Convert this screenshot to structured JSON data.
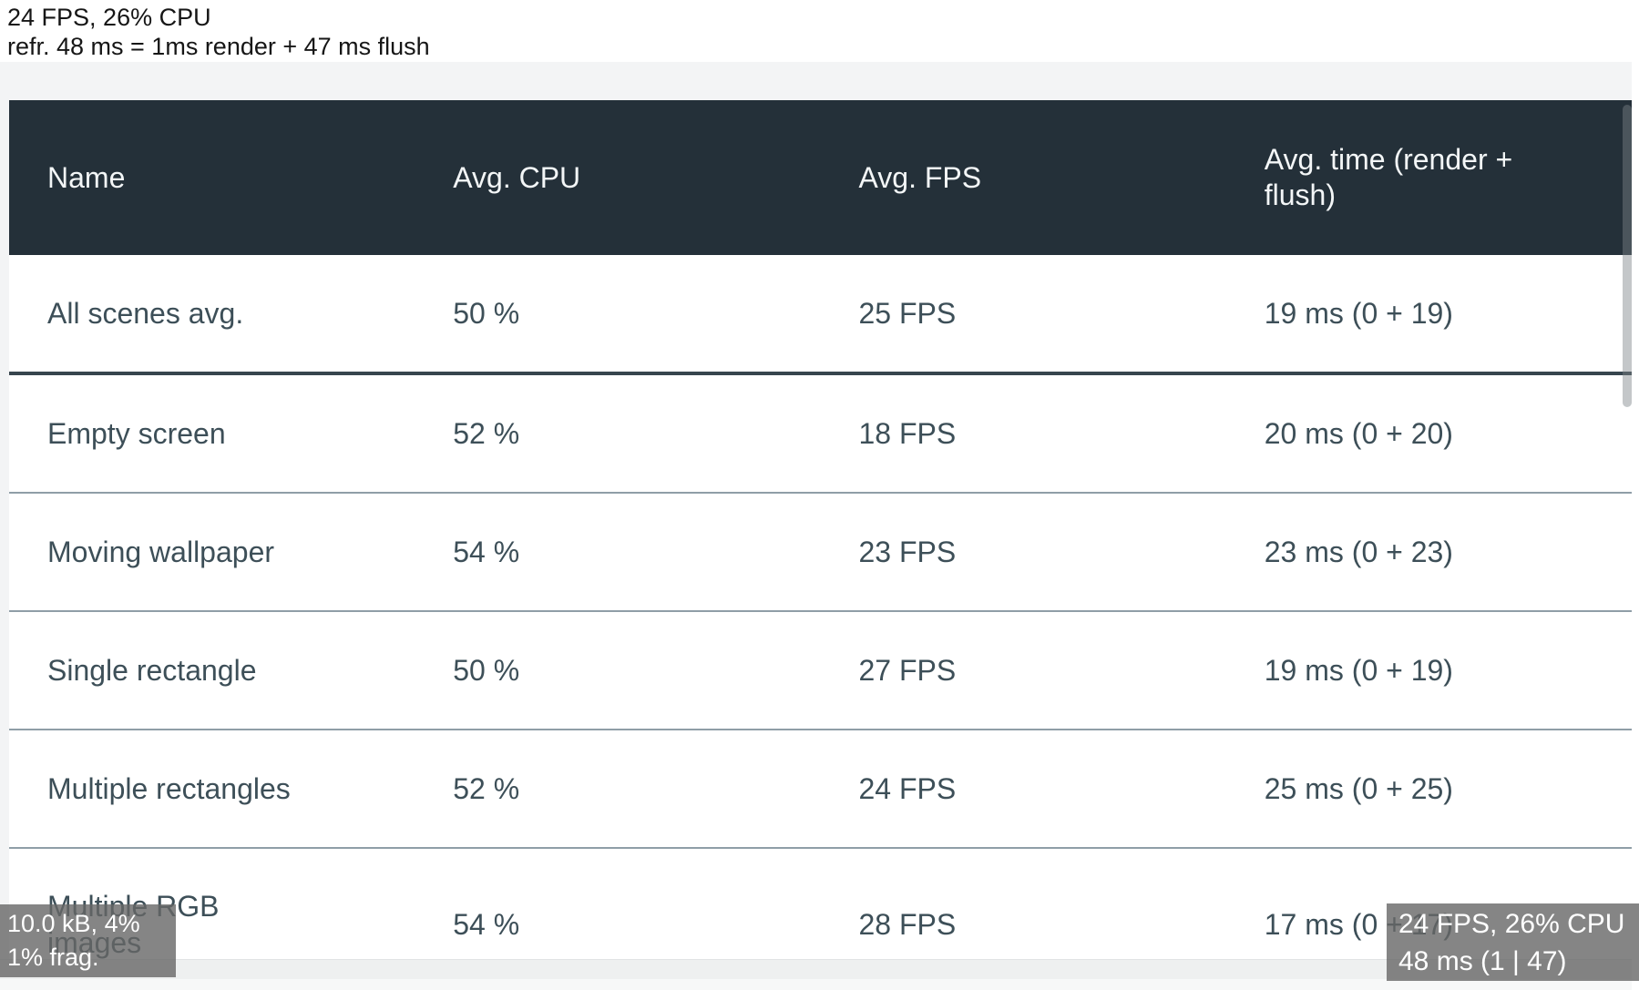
{
  "debug_top": {
    "line1": "24 FPS, 26% CPU",
    "line2": "refr. 48 ms = 1ms render + 47 ms flush"
  },
  "table": {
    "columns": [
      "Name",
      "Avg. CPU",
      "Avg. FPS",
      "Avg. time (render + flush)"
    ],
    "summary_row": {
      "name": "All scenes avg.",
      "cpu": "50 %",
      "fps": "25 FPS",
      "time": "19 ms (0 + 19)"
    },
    "rows": [
      {
        "name": "Empty screen",
        "cpu": "52 %",
        "fps": "18 FPS",
        "time": "20 ms (0 + 20)"
      },
      {
        "name": "Moving wallpaper",
        "cpu": "54 %",
        "fps": "23 FPS",
        "time": "23 ms (0 + 23)"
      },
      {
        "name": "Single rectangle",
        "cpu": "50 %",
        "fps": "27 FPS",
        "time": "19 ms (0 + 19)"
      },
      {
        "name": "Multiple rectangles",
        "cpu": "52 %",
        "fps": "24 FPS",
        "time": "25 ms (0 + 25)"
      },
      {
        "name": "Multiple RGB images",
        "cpu": "54 %",
        "fps": "28 FPS",
        "time": "17 ms (0 + 17)"
      }
    ]
  },
  "overlay_bottom_left": {
    "line1": "10.0 kB, 4%",
    "line2": "1% frag."
  },
  "overlay_bottom_right": {
    "line1": "24 FPS, 26% CPU",
    "line2": "48 ms (1 | 47)"
  },
  "colors": {
    "header_bg": "#243039",
    "cell_text": "#3d4f58",
    "thin_divider": "#8f9ea7",
    "thick_divider": "#37454e",
    "page_grey": "#f3f4f5",
    "overlay_bg": "rgba(103,103,103,0.8)"
  }
}
